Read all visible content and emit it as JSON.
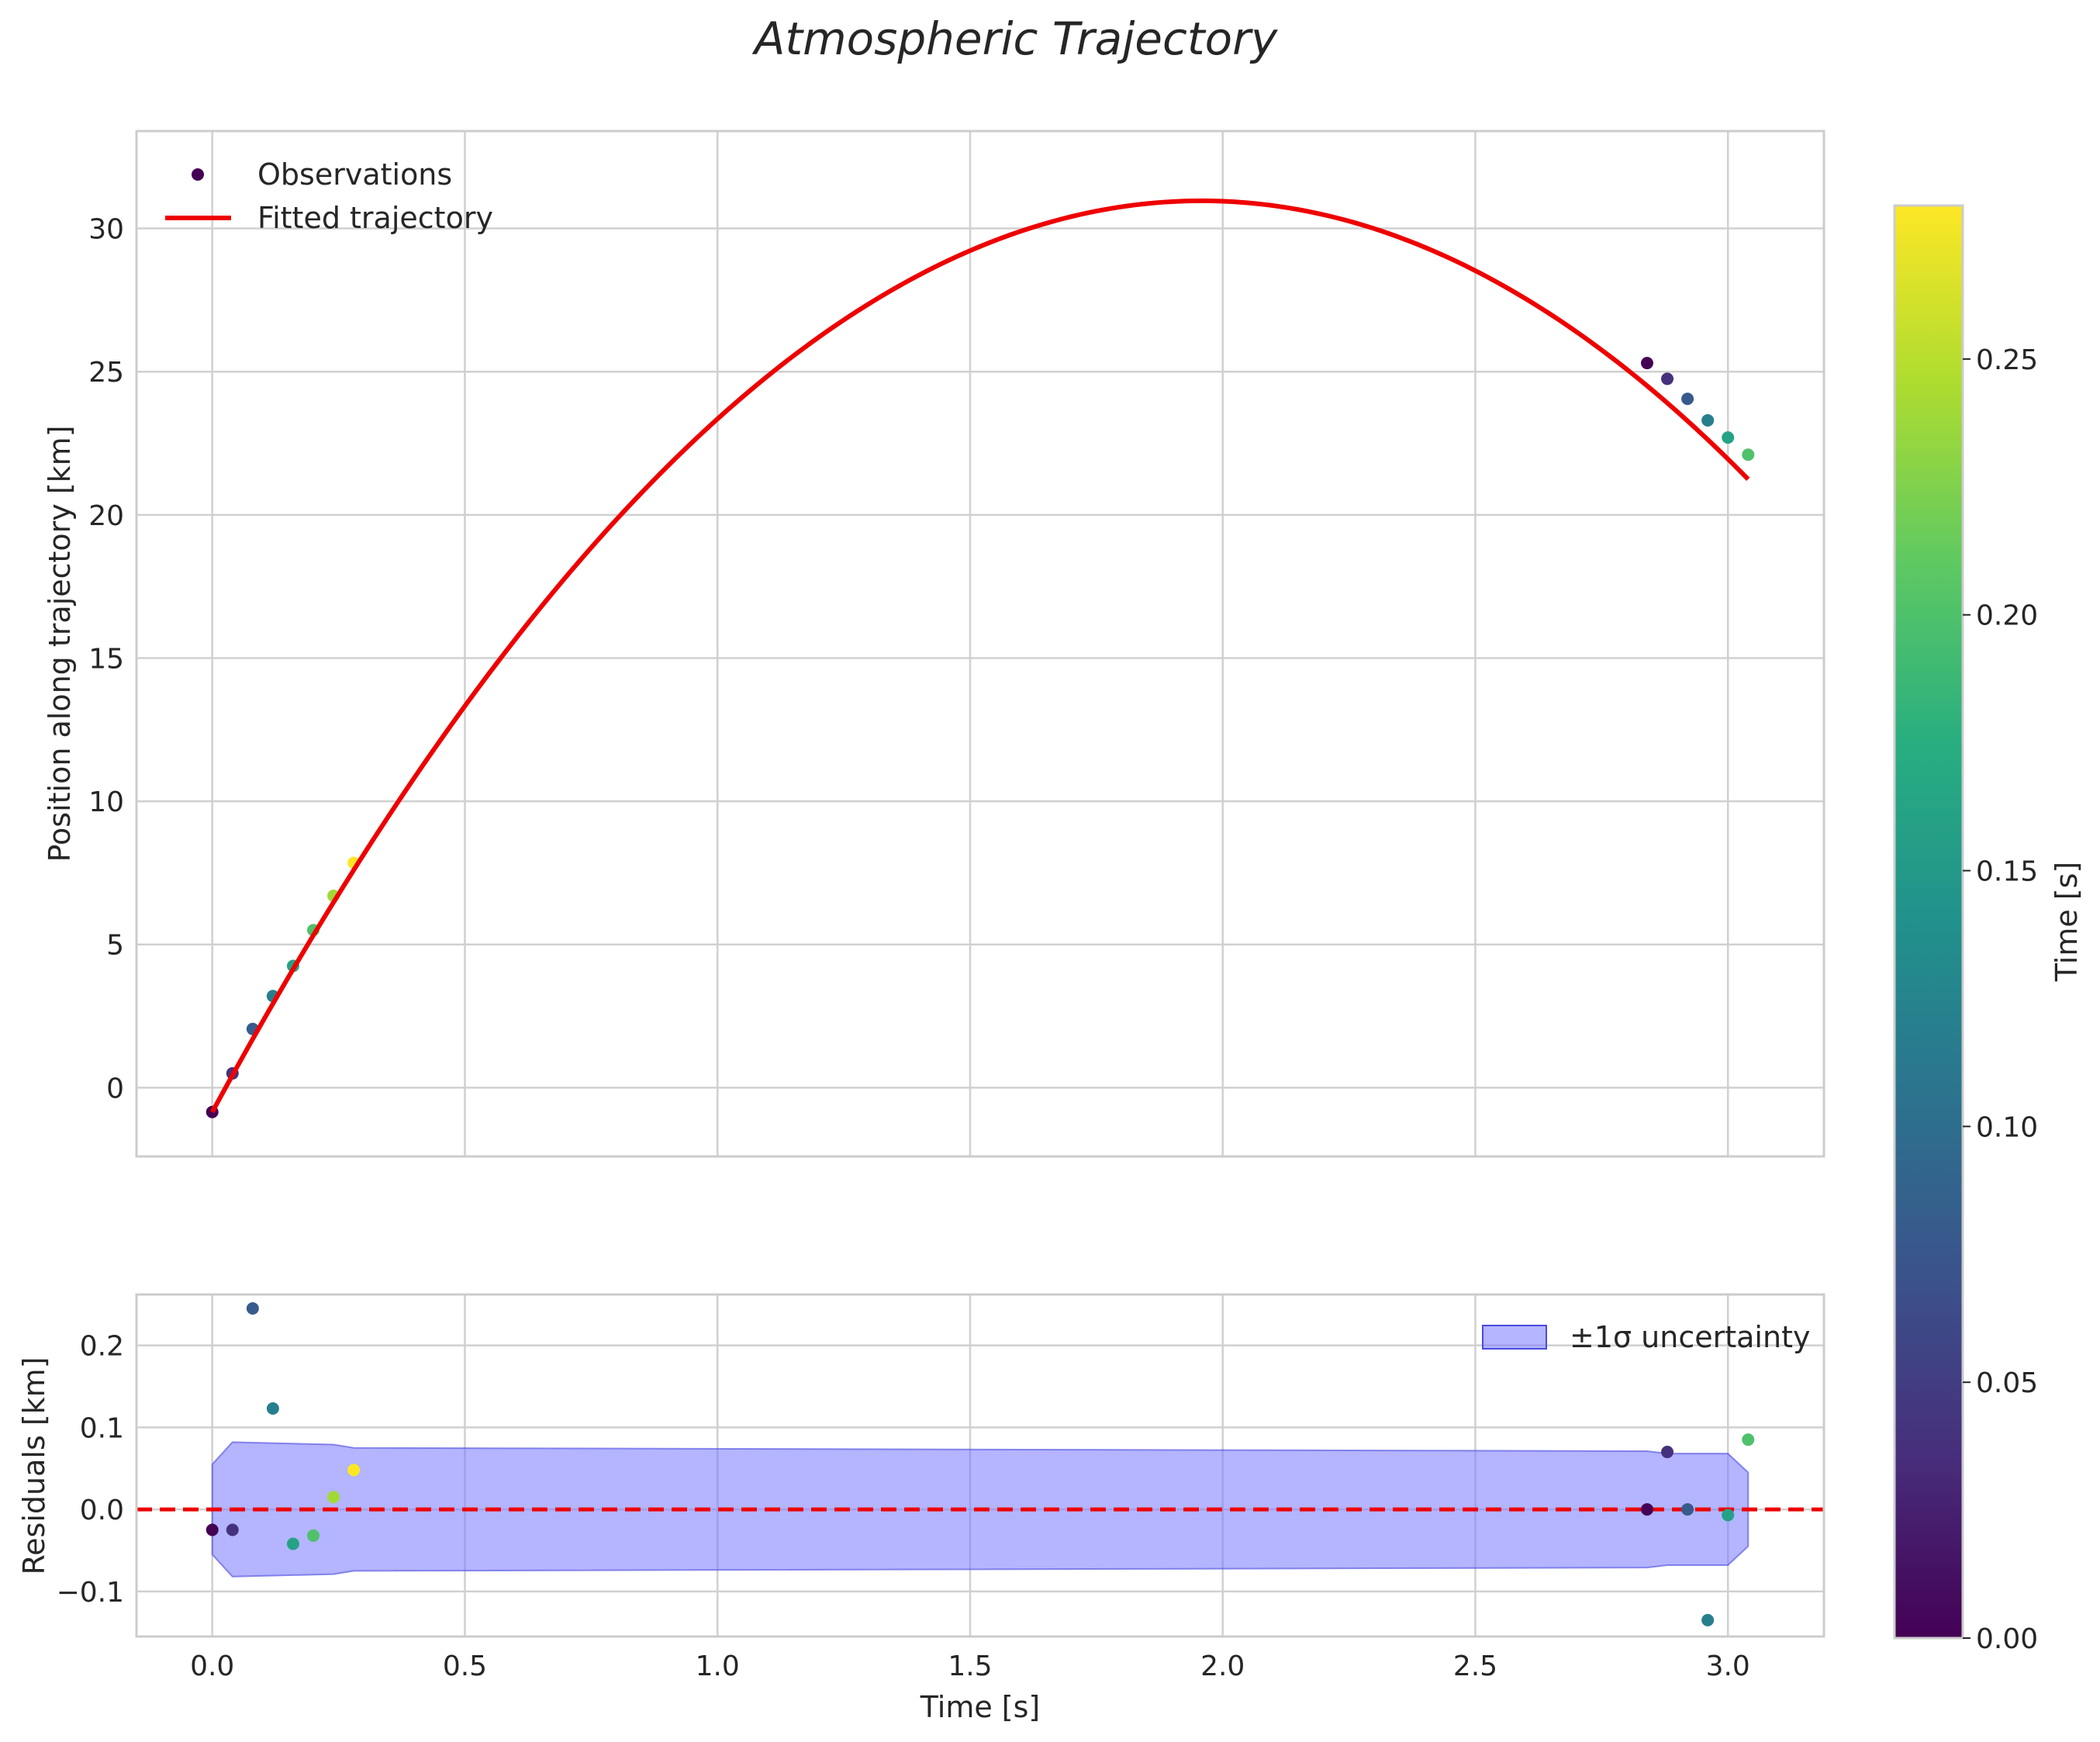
{
  "chart_data": [
    {
      "type": "line",
      "title": "Atmospheric Trajectory",
      "xlabel": "",
      "ylabel": "Position along trajectory [km]",
      "xlim": [
        -0.15,
        3.19
      ],
      "ylim": [
        -2.4,
        33.4
      ],
      "xticks": [
        "0.0",
        "0.5",
        "1.0",
        "1.5",
        "2.0",
        "2.5",
        "3.0"
      ],
      "yticks": [
        "0",
        "5",
        "10",
        "15",
        "20",
        "25",
        "30"
      ],
      "legend_position": "top-left",
      "grid": true,
      "legend": {
        "observations": "Observations",
        "fit": "Fitted trajectory"
      },
      "fit_model": {
        "a": -8.3,
        "b": 32.5,
        "c": -0.85,
        "x_start": 0.0,
        "x_end": 3.04
      },
      "series": [
        {
          "name": "Observations",
          "x": [
            0.0,
            0.04,
            0.08,
            0.12,
            0.16,
            0.2,
            0.24,
            0.28,
            2.84,
            2.88,
            2.92,
            2.96,
            3.0,
            3.04
          ],
          "y": [
            -0.85,
            0.5,
            2.05,
            3.2,
            4.25,
            5.5,
            6.7,
            7.85,
            25.3,
            24.75,
            24.05,
            23.3,
            22.7,
            22.1
          ],
          "color_value": [
            0.0,
            0.04,
            0.08,
            0.12,
            0.16,
            0.2,
            0.24,
            0.28,
            0.0,
            0.04,
            0.08,
            0.12,
            0.16,
            0.2
          ]
        }
      ]
    },
    {
      "type": "scatter",
      "title": "",
      "xlabel": "Time [s]",
      "ylabel": "Residuals [km]",
      "xlim": [
        -0.15,
        3.19
      ],
      "ylim": [
        -0.155,
        0.262
      ],
      "xticks": [
        "0.0",
        "0.5",
        "1.0",
        "1.5",
        "2.0",
        "2.5",
        "3.0"
      ],
      "yticks": [
        "−0.1",
        "0.0",
        "0.1",
        "0.2"
      ],
      "legend_position": "top-right",
      "grid": true,
      "legend": {
        "band": "±1σ uncertainty"
      },
      "zero_line": 0.0,
      "band": {
        "x": [
          0.0,
          0.04,
          0.24,
          0.28,
          2.84,
          2.88,
          3.0,
          3.04
        ],
        "upper": [
          0.055,
          0.082,
          0.079,
          0.075,
          0.071,
          0.068,
          0.068,
          0.045
        ],
        "lower": [
          -0.055,
          -0.082,
          -0.079,
          -0.075,
          -0.071,
          -0.068,
          -0.068,
          -0.045
        ]
      },
      "series": [
        {
          "name": "Residuals",
          "x": [
            0.0,
            0.04,
            0.08,
            0.12,
            0.16,
            0.2,
            0.24,
            0.28,
            2.84,
            2.88,
            2.92,
            2.96,
            3.0,
            3.04
          ],
          "y": [
            -0.025,
            -0.025,
            0.245,
            0.123,
            -0.042,
            -0.032,
            0.015,
            0.048,
            0.0,
            0.07,
            0.0,
            -0.135,
            -0.007,
            0.085
          ],
          "color_value": [
            0.0,
            0.04,
            0.08,
            0.12,
            0.16,
            0.2,
            0.24,
            0.28,
            0.0,
            0.04,
            0.08,
            0.12,
            0.16,
            0.2
          ]
        }
      ]
    }
  ],
  "colorbar": {
    "label": "Time [s]",
    "range": [
      0.0,
      0.28
    ],
    "ticks": [
      "0.00",
      "0.05",
      "0.10",
      "0.15",
      "0.20",
      "0.25"
    ],
    "tick_values": [
      0.0,
      0.05,
      0.1,
      0.15,
      0.2,
      0.25
    ],
    "colormap": "viridis"
  },
  "colors": {
    "fit_line": "#ee0000",
    "zero_line": "#ee0000",
    "band_fill": "#7777ff",
    "grid": "#d0d0d0",
    "spine": "#cccccc",
    "legend_obs_marker": "#440154"
  }
}
